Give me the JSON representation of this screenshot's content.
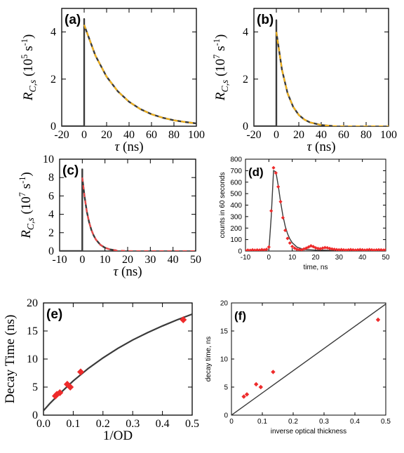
{
  "colors": {
    "curve": "#3a3a3a",
    "fit_yellow": "#f2b21c",
    "fit_red": "#ec4a4a",
    "marker_red": "#ee2b2b",
    "axis": "#000000"
  },
  "chart_data": [
    {
      "panel": "(a)",
      "type": "line",
      "xlabel": "τ (ns)",
      "ylabel": "R_C,s (10^5 s^-1)",
      "xlim": [
        -20,
        100
      ],
      "ylim": [
        0,
        5
      ],
      "xticks": [
        "-20",
        "0",
        "20",
        "40",
        "60",
        "80",
        "100"
      ],
      "yticks": [
        "0",
        "2",
        "4"
      ],
      "series": [
        {
          "style": "solid",
          "color": "#3a3a3a",
          "spike_at": 0,
          "peak": 4.55,
          "x": [
            0,
            10,
            20,
            30,
            40,
            50,
            60,
            70,
            80,
            90,
            100
          ],
          "y": [
            4.3,
            3.0,
            2.1,
            1.48,
            1.04,
            0.73,
            0.51,
            0.36,
            0.25,
            0.18,
            0.12
          ]
        },
        {
          "style": "dashed",
          "color": "#f2b21c",
          "x": [
            0,
            10,
            20,
            30,
            40,
            50,
            60,
            70,
            80,
            90,
            100
          ],
          "y": [
            4.3,
            3.0,
            2.1,
            1.48,
            1.04,
            0.73,
            0.51,
            0.36,
            0.25,
            0.18,
            0.12
          ]
        }
      ]
    },
    {
      "panel": "(b)",
      "type": "line",
      "xlabel": "τ (ns)",
      "ylabel": "R_C,s (10^7 s^-1)",
      "xlim": [
        -20,
        100
      ],
      "ylim": [
        0,
        5
      ],
      "xticks": [
        "-20",
        "0",
        "20",
        "40",
        "60",
        "80",
        "100"
      ],
      "yticks": [
        "0",
        "2",
        "4"
      ],
      "series": [
        {
          "style": "solid",
          "color": "#3a3a3a",
          "spike_at": 0,
          "peak": 4.5,
          "x": [
            0,
            5,
            10,
            15,
            20,
            25,
            30,
            40,
            50
          ],
          "y": [
            4.0,
            2.4,
            1.4,
            0.82,
            0.48,
            0.28,
            0.16,
            0.05,
            0.01
          ]
        },
        {
          "style": "dashed",
          "color": "#f2b21c",
          "x": [
            0,
            5,
            10,
            15,
            20,
            25,
            30,
            40,
            50,
            60,
            70,
            80,
            90,
            100
          ],
          "y": [
            4.0,
            2.4,
            1.4,
            0.82,
            0.48,
            0.28,
            0.16,
            0.05,
            0.01,
            0,
            0,
            0,
            0,
            0
          ]
        }
      ]
    },
    {
      "panel": "(c)",
      "type": "line",
      "xlabel": "τ (ns)",
      "ylabel": "R_C,s (10^7 s^-1)",
      "xlim": [
        -10,
        50
      ],
      "ylim": [
        0,
        10
      ],
      "xticks": [
        "-10",
        "0",
        "10",
        "20",
        "30",
        "40",
        "50"
      ],
      "yticks": [
        "0",
        "2",
        "4",
        "6",
        "8",
        "10"
      ],
      "series": [
        {
          "style": "solid",
          "color": "#3a3a3a",
          "spike_at": 0,
          "peak": 8.9,
          "x": [
            0,
            1,
            2,
            3,
            4,
            5,
            6,
            8,
            10,
            12,
            15
          ],
          "y": [
            8.0,
            5.9,
            4.3,
            3.15,
            2.3,
            1.7,
            1.25,
            0.67,
            0.36,
            0.19,
            0.07
          ]
        },
        {
          "style": "dashed",
          "color": "#ec4a4a",
          "x": [
            0,
            1,
            2,
            3,
            4,
            5,
            6,
            8,
            10,
            12,
            15,
            20,
            30,
            40,
            50
          ],
          "y": [
            8.0,
            5.9,
            4.3,
            3.15,
            2.3,
            1.7,
            1.25,
            0.67,
            0.36,
            0.19,
            0.07,
            0.01,
            0,
            0,
            0
          ]
        }
      ]
    },
    {
      "panel": "(d)",
      "type": "scatter",
      "xlabel": "time, ns",
      "ylabel": "counts in 60 seconds",
      "xlim": [
        -10,
        50
      ],
      "ylim": [
        0,
        800
      ],
      "xticks": [
        "-10",
        "0",
        "10",
        "20",
        "30",
        "40",
        "50"
      ],
      "yticks": [
        "0",
        "100",
        "200",
        "300",
        "400",
        "500",
        "600",
        "700",
        "800"
      ],
      "points": {
        "x": [
          -10,
          -9,
          -8,
          -7,
          -6,
          -5,
          -4,
          -3,
          -2,
          -1,
          0,
          1,
          2,
          3,
          4,
          5,
          6,
          7,
          8,
          9,
          10,
          11,
          12,
          13,
          14,
          15,
          16,
          17,
          18,
          19,
          20,
          21,
          22,
          23,
          24,
          25,
          26,
          27,
          28,
          29,
          30,
          31,
          32,
          33,
          34,
          35,
          36,
          37,
          38,
          39,
          40,
          41,
          42,
          43,
          44,
          45,
          46,
          47,
          48,
          49,
          50
        ],
        "y": [
          5,
          8,
          6,
          10,
          7,
          9,
          8,
          12,
          10,
          15,
          35,
          350,
          725,
          680,
          560,
          430,
          290,
          180,
          110,
          70,
          40,
          25,
          15,
          12,
          10,
          18,
          25,
          35,
          45,
          38,
          28,
          22,
          20,
          25,
          30,
          28,
          22,
          18,
          15,
          12,
          10,
          12,
          10,
          8,
          10,
          12,
          10,
          8,
          10,
          12,
          10,
          8,
          10,
          12,
          10,
          8,
          9,
          11,
          10,
          8,
          12
        ]
      },
      "fit": {
        "x": [
          0,
          1,
          2,
          3,
          4,
          5,
          6,
          7,
          8,
          9,
          10,
          12,
          14,
          16,
          20,
          25,
          30,
          40,
          50
        ],
        "y": [
          0,
          300,
          700,
          690,
          570,
          430,
          310,
          215,
          150,
          105,
          72,
          35,
          20,
          12,
          8,
          6,
          5,
          4,
          4
        ]
      }
    },
    {
      "panel": "(e)",
      "type": "scatter",
      "xlabel": "1/OD",
      "ylabel": "Decay Time (ns)",
      "xlim": [
        0,
        0.5
      ],
      "ylim": [
        0,
        20
      ],
      "xticks": [
        "0.0",
        "0.1",
        "0.2",
        "0.3",
        "0.4",
        "0.5"
      ],
      "yticks": [
        "0",
        "5",
        "10",
        "15",
        "20"
      ],
      "points": {
        "x": [
          0.04,
          0.045,
          0.055,
          0.08,
          0.09,
          0.125,
          0.47
        ],
        "y": [
          3.4,
          3.7,
          4.0,
          5.5,
          5.0,
          7.7,
          17.0
        ]
      },
      "fit": {
        "x": [
          0.0,
          0.02,
          0.05,
          0.1,
          0.15,
          0.2,
          0.25,
          0.3,
          0.35,
          0.4,
          0.45,
          0.5
        ],
        "y": [
          0.8,
          2.0,
          3.6,
          6.1,
          8.3,
          10.2,
          11.9,
          13.4,
          14.7,
          15.9,
          17.0,
          18.0
        ]
      }
    },
    {
      "panel": "(f)",
      "type": "scatter",
      "xlabel": "inverse optical thickness",
      "ylabel": "decay time, ns",
      "xlim": [
        0,
        0.5
      ],
      "ylim": [
        0,
        20
      ],
      "xticks": [
        "0",
        "0.1",
        "0.2",
        "0.3",
        "0.4",
        "0.5"
      ],
      "yticks": [
        "0",
        "5",
        "10",
        "15",
        "20"
      ],
      "points": {
        "x": [
          0.04,
          0.05,
          0.08,
          0.095,
          0.135,
          0.475
        ],
        "y": [
          3.3,
          3.7,
          5.5,
          5.0,
          7.7,
          17.0
        ]
      },
      "fit": {
        "x": [
          0,
          0.5
        ],
        "y": [
          0,
          19.8
        ]
      }
    }
  ]
}
